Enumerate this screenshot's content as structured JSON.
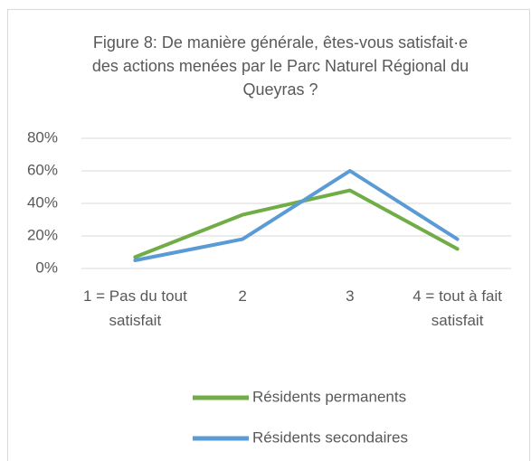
{
  "chart_data": {
    "type": "line",
    "title": "Figure 8: De manière générale, êtes-vous satisfait·e des actions menées par le Parc Naturel Régional du Queyras ?",
    "categories": [
      "1 = Pas du tout satisfait",
      "2",
      "3",
      "4 = tout à fait satisfait"
    ],
    "series": [
      {
        "name": "Résidents permanents",
        "color": "#70ad47",
        "values": [
          7,
          33,
          48,
          12
        ]
      },
      {
        "name": "Résidents secondaires",
        "color": "#5b9bd5",
        "values": [
          5,
          18,
          60,
          18
        ]
      }
    ],
    "ylim": [
      0,
      80
    ],
    "yticks": [
      {
        "value": 0,
        "label": "0%"
      },
      {
        "value": 20,
        "label": "20%"
      },
      {
        "value": 40,
        "label": "40%"
      },
      {
        "value": 60,
        "label": "60%"
      },
      {
        "value": 80,
        "label": "80%"
      }
    ],
    "grid": true
  }
}
